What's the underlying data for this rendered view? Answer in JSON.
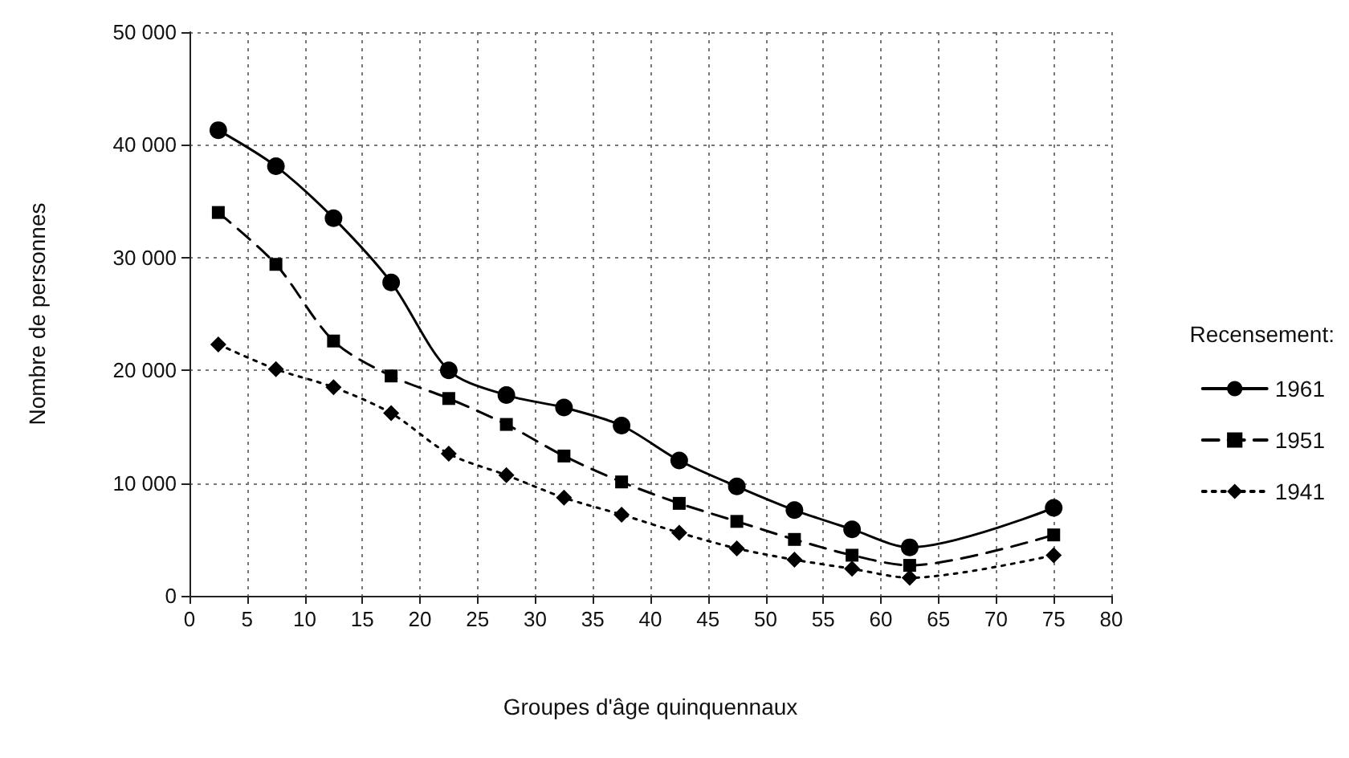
{
  "chart_data": {
    "type": "line",
    "xlabel": "Groupes d'âge quinquennaux",
    "ylabel": "Nombre de personnes",
    "legend_title": "Recensement:",
    "x": [
      2.5,
      7.5,
      12.5,
      17.5,
      22.5,
      27.5,
      32.5,
      37.5,
      42.5,
      47.5,
      52.5,
      57.5,
      62.5,
      75
    ],
    "series": [
      {
        "name": "1961",
        "color": "#000000",
        "marker": "circle",
        "line_style": "solid",
        "values": [
          41300,
          38100,
          33500,
          27800,
          20000,
          17800,
          16700,
          15100,
          12000,
          9700,
          7600,
          5900,
          4300,
          7800
        ]
      },
      {
        "name": "1951",
        "color": "#000000",
        "marker": "square",
        "line_style": "dashed",
        "values": [
          34000,
          29400,
          22600,
          19500,
          17500,
          15200,
          12400,
          10100,
          8200,
          6600,
          5000,
          3600,
          2700,
          5400
        ]
      },
      {
        "name": "1941",
        "color": "#000000",
        "marker": "diamond",
        "line_style": "dotted",
        "values": [
          22300,
          20100,
          18500,
          16200,
          12600,
          10700,
          8700,
          7200,
          5600,
          4200,
          3200,
          2400,
          1600,
          3600
        ]
      }
    ],
    "xlim": [
      0,
      80
    ],
    "xticks": [
      0,
      5,
      10,
      15,
      20,
      25,
      30,
      35,
      40,
      45,
      50,
      55,
      60,
      65,
      70,
      75,
      80
    ],
    "ylim": [
      0,
      50000
    ],
    "yticks": [
      0,
      {
        "value": 10000,
        "label": "10 000"
      },
      {
        "value": 20000,
        "label": "20 000"
      },
      {
        "value": 30000,
        "label": "30 000"
      },
      {
        "value": 40000,
        "label": "40 000"
      },
      {
        "value": 50000,
        "label": "50 000"
      }
    ],
    "grid": true,
    "legend": "right"
  }
}
